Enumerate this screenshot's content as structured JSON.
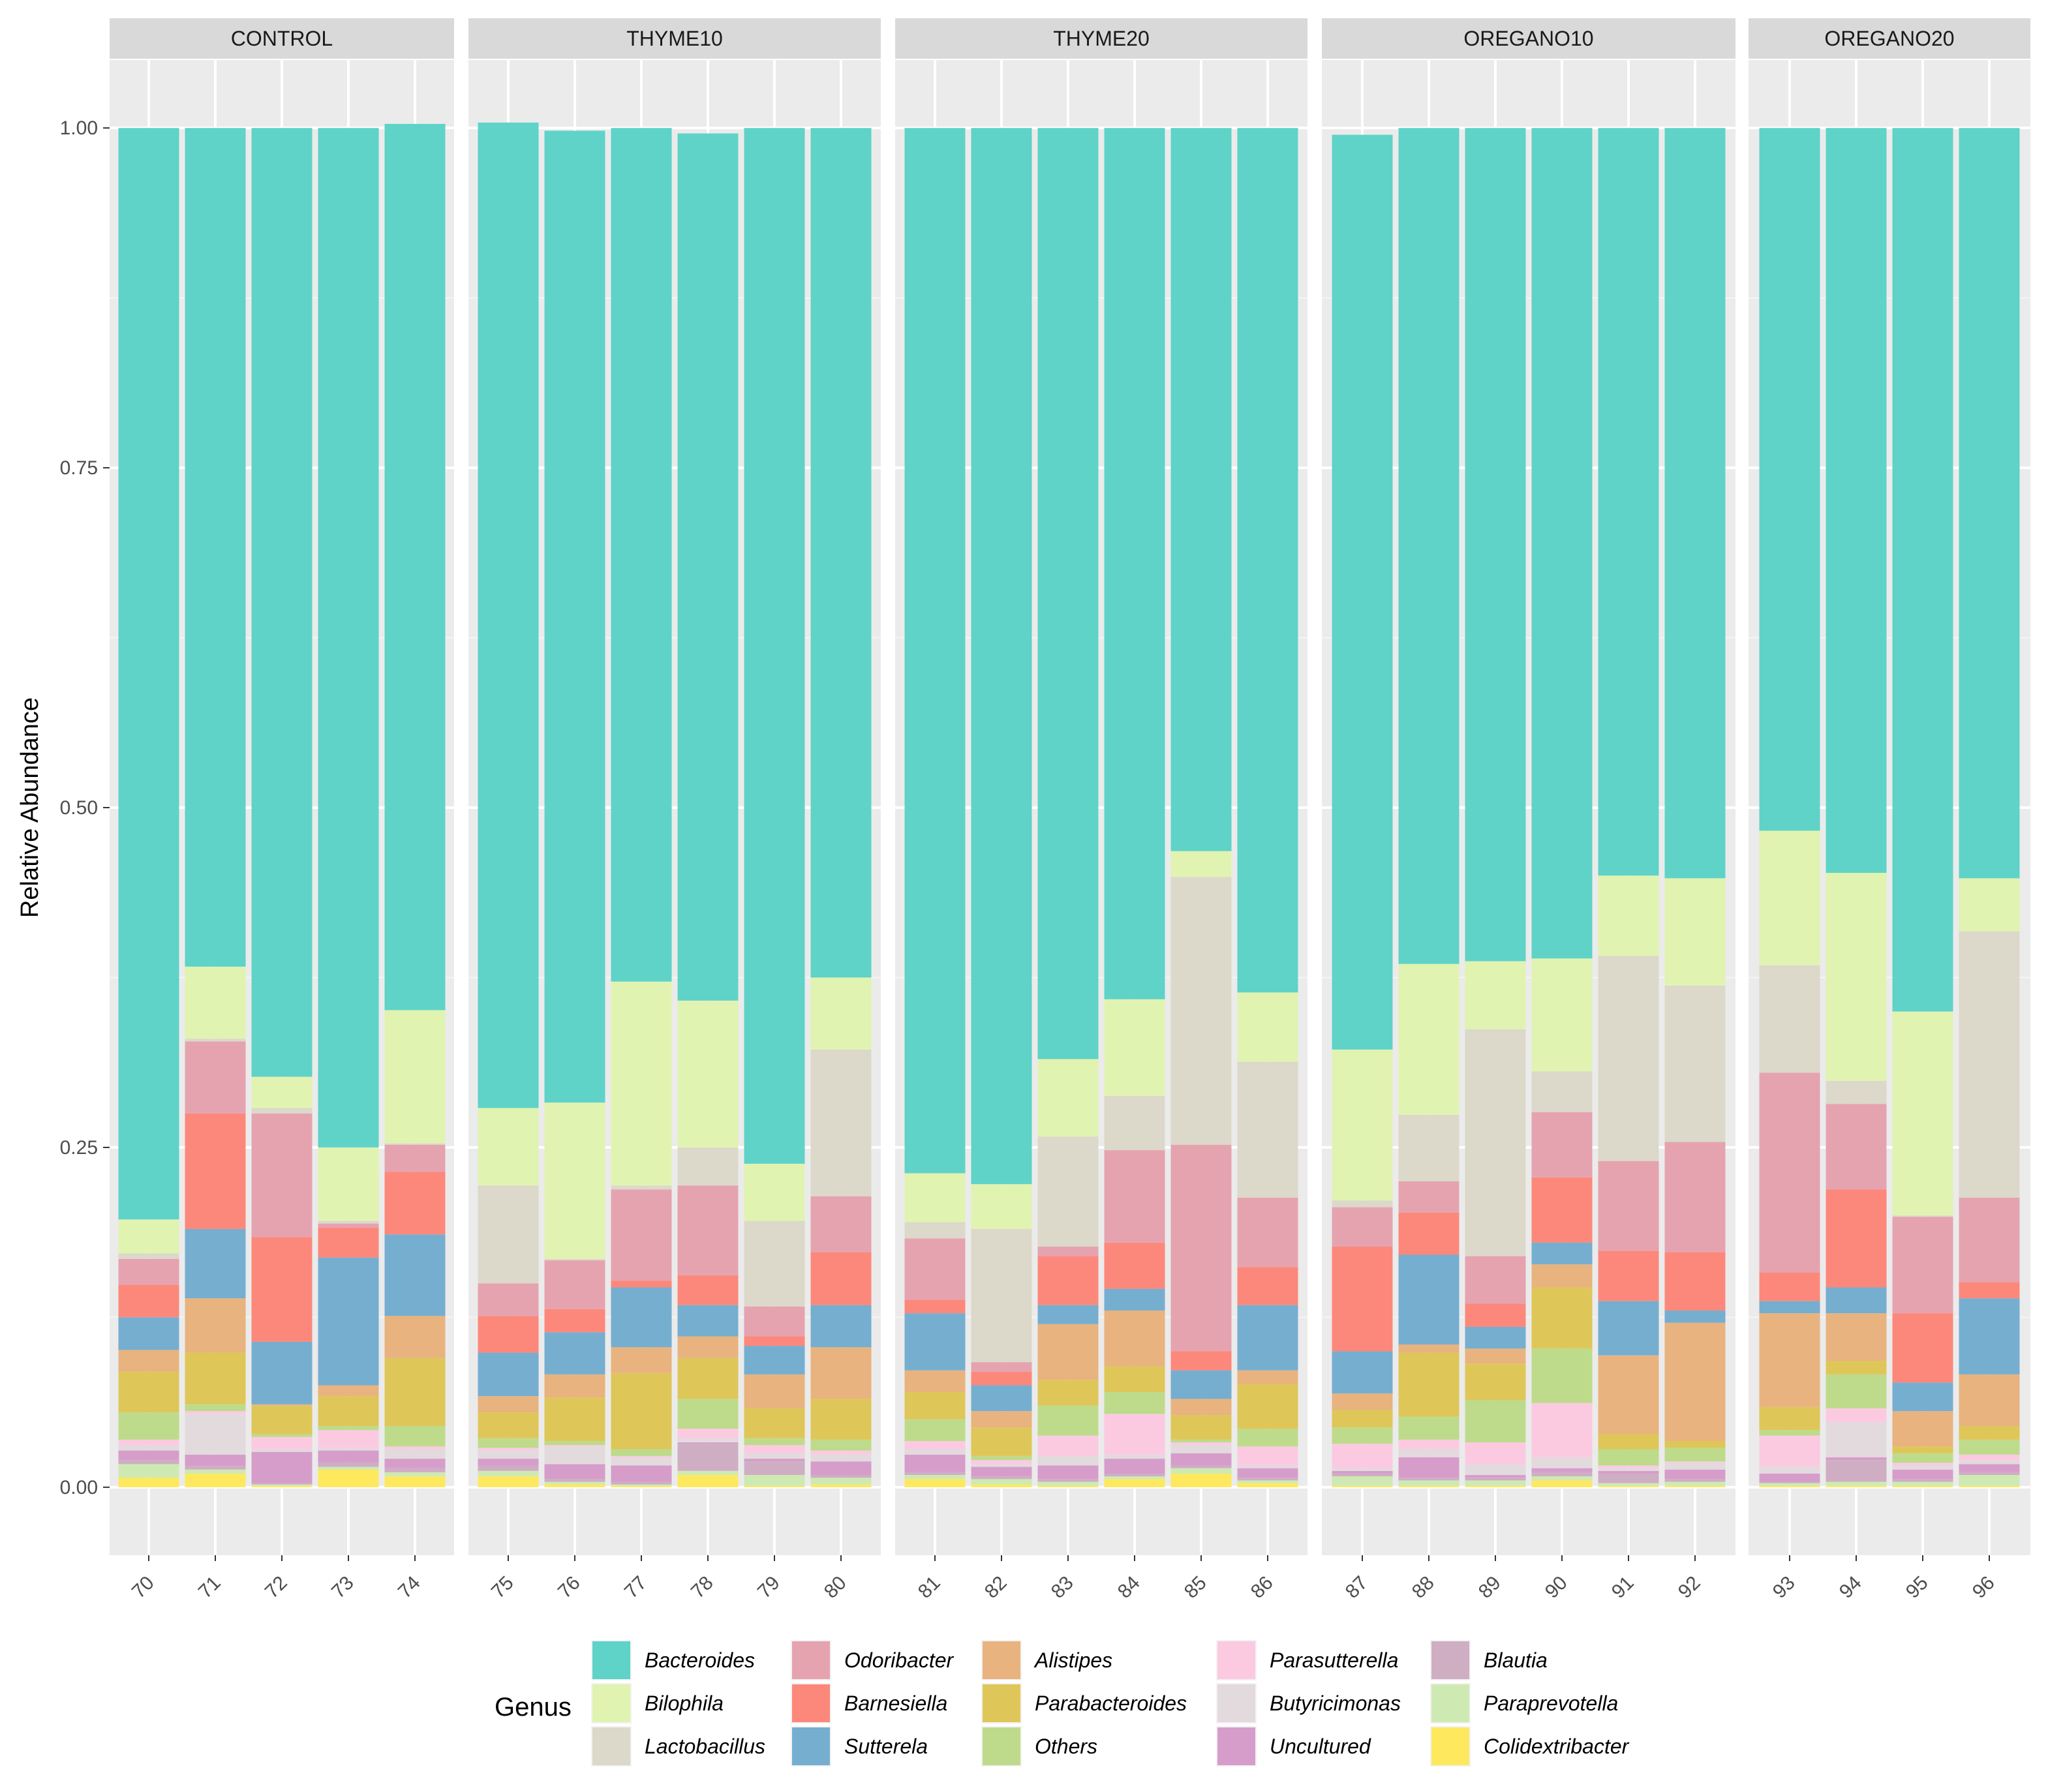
{
  "chart_data": {
    "type": "bar",
    "stacked": true,
    "facets": [
      "CONTROL",
      "THYME10",
      "THYME20",
      "OREGANO10",
      "OREGANO20"
    ],
    "ylabel": "Relative Abundance",
    "xlabel": "",
    "ylim": [
      -0.05,
      1.05
    ],
    "yticks": [
      "0.00",
      "0.25",
      "0.50",
      "0.75",
      "1.00"
    ],
    "grid": true,
    "legend": {
      "title": "Genus",
      "position": "bottom"
    },
    "stack_order": [
      "Colidextribacter",
      "Paraprevotella",
      "Blautia",
      "Uncultured",
      "Butyricimonas",
      "Parasutterella",
      "Others",
      "Parabacteroides",
      "Alistipes",
      "Sutterela",
      "Barnesiella",
      "Odoribacter",
      "Lactobacillus",
      "Bilophila",
      "Bacteroides"
    ],
    "genera": [
      {
        "name": "Bacteroides",
        "color": "#5fd3c8"
      },
      {
        "name": "Bilophila",
        "color": "#e1f3b1"
      },
      {
        "name": "Lactobacillus",
        "color": "#dcd8ca"
      },
      {
        "name": "Odoribacter",
        "color": "#e5a3b0"
      },
      {
        "name": "Barnesiella",
        "color": "#fc887b"
      },
      {
        "name": "Sutterela",
        "color": "#76aed0"
      },
      {
        "name": "Alistipes",
        "color": "#e8b37e"
      },
      {
        "name": "Parabacteroides",
        "color": "#dfc659"
      },
      {
        "name": "Others",
        "color": "#bedb8b"
      },
      {
        "name": "Parasutterella",
        "color": "#fbcae1"
      },
      {
        "name": "Butyricimonas",
        "color": "#e3dade"
      },
      {
        "name": "Uncultured",
        "color": "#d69dcb"
      },
      {
        "name": "Blautia",
        "color": "#cfaec4"
      },
      {
        "name": "Paraprevotella",
        "color": "#ceeab2"
      },
      {
        "name": "Colidextribacter",
        "color": "#fee85e"
      }
    ],
    "samples": [
      {
        "id": "70",
        "facet": "CONTROL",
        "values": {
          "Colidextribacter": 0.007,
          "Paraprevotella": 0.01,
          "Blautia": 0.003,
          "Uncultured": 0.007,
          "Butyricimonas": 0.004,
          "Parasutterella": 0.004,
          "Others": 0.02,
          "Parabacteroides": 0.03,
          "Alistipes": 0.016,
          "Sutterela": 0.024,
          "Barnesiella": 0.024,
          "Odoribacter": 0.019,
          "Lactobacillus": 0.004,
          "Bilophila": 0.025,
          "Bacteroides": 0.803
        }
      },
      {
        "id": "71",
        "facet": "CONTROL",
        "values": {
          "Colidextribacter": 0.01,
          "Paraprevotella": 0.003,
          "Blautia": 0.003,
          "Uncultured": 0.008,
          "Butyricimonas": 0.03,
          "Parasutterella": 0.002,
          "Others": 0.005,
          "Parabacteroides": 0.038,
          "Alistipes": 0.04,
          "Sutterela": 0.051,
          "Barnesiella": 0.085,
          "Odoribacter": 0.053,
          "Lactobacillus": 0.002,
          "Bilophila": 0.053,
          "Bacteroides": 0.617
        }
      },
      {
        "id": "72",
        "facet": "CONTROL",
        "values": {
          "Colidextribacter": 0.001,
          "Paraprevotella": 0.001,
          "Blautia": 0.001,
          "Uncultured": 0.023,
          "Butyricimonas": 0.002,
          "Parasutterella": 0.009,
          "Others": 0.002,
          "Parabacteroides": 0.021,
          "Alistipes": 0.001,
          "Sutterela": 0.046,
          "Barnesiella": 0.077,
          "Odoribacter": 0.091,
          "Lactobacillus": 0.004,
          "Bilophila": 0.023,
          "Bacteroides": 0.698
        }
      },
      {
        "id": "73",
        "facet": "CONTROL",
        "values": {
          "Colidextribacter": 0.013,
          "Paraprevotella": 0.002,
          "Blautia": 0.003,
          "Uncultured": 0.009,
          "Butyricimonas": 0.002,
          "Parasutterella": 0.013,
          "Others": 0.003,
          "Parabacteroides": 0.022,
          "Alistipes": 0.008,
          "Sutterela": 0.094,
          "Barnesiella": 0.022,
          "Odoribacter": 0.003,
          "Lactobacillus": 0.002,
          "Bilophila": 0.054,
          "Bacteroides": 0.75
        }
      },
      {
        "id": "74",
        "facet": "CONTROL",
        "values": {
          "Colidextribacter": 0.008,
          "Paraprevotella": 0.003,
          "Blautia": 0.003,
          "Uncultured": 0.007,
          "Butyricimonas": 0.007,
          "Parasutterella": 0.002,
          "Others": 0.015,
          "Parabacteroides": 0.05,
          "Alistipes": 0.031,
          "Sutterela": 0.06,
          "Barnesiella": 0.046,
          "Odoribacter": 0.02,
          "Lactobacillus": 0.001,
          "Bilophila": 0.098,
          "Bacteroides": 0.652
        }
      },
      {
        "id": "75",
        "facet": "THYME10",
        "values": {
          "Colidextribacter": 0.008,
          "Paraprevotella": 0.004,
          "Blautia": 0.004,
          "Uncultured": 0.005,
          "Butyricimonas": 0.006,
          "Parasutterella": 0.002,
          "Others": 0.007,
          "Parabacteroides": 0.019,
          "Alistipes": 0.012,
          "Sutterela": 0.032,
          "Barnesiella": 0.027,
          "Odoribacter": 0.024,
          "Lactobacillus": 0.072,
          "Bilophila": 0.057,
          "Bacteroides": 0.725
        }
      },
      {
        "id": "76",
        "facet": "THYME10",
        "values": {
          "Colidextribacter": 0.002,
          "Paraprevotella": 0.002,
          "Blautia": 0.002,
          "Uncultured": 0.011,
          "Butyricimonas": 0.013,
          "Parasutterella": 0.001,
          "Others": 0.003,
          "Parabacteroides": 0.032,
          "Alistipes": 0.017,
          "Sutterela": 0.031,
          "Barnesiella": 0.017,
          "Odoribacter": 0.036,
          "Lactobacillus": 0.001,
          "Bilophila": 0.115,
          "Bacteroides": 0.715
        }
      },
      {
        "id": "77",
        "facet": "THYME10",
        "values": {
          "Colidextribacter": 0.001,
          "Paraprevotella": 0.001,
          "Blautia": 0.002,
          "Uncultured": 0.012,
          "Butyricimonas": 0.006,
          "Parasutterella": 0.001,
          "Others": 0.005,
          "Parabacteroides": 0.056,
          "Alistipes": 0.019,
          "Sutterela": 0.044,
          "Barnesiella": 0.005,
          "Odoribacter": 0.067,
          "Lactobacillus": 0.003,
          "Bilophila": 0.15,
          "Bacteroides": 0.628
        }
      },
      {
        "id": "78",
        "facet": "THYME10",
        "values": {
          "Colidextribacter": 0.009,
          "Paraprevotella": 0.003,
          "Blautia": 0.02,
          "Uncultured": 0.001,
          "Butyricimonas": 0.003,
          "Parasutterella": 0.007,
          "Others": 0.022,
          "Parabacteroides": 0.03,
          "Alistipes": 0.016,
          "Sutterela": 0.023,
          "Barnesiella": 0.022,
          "Odoribacter": 0.066,
          "Lactobacillus": 0.028,
          "Bilophila": 0.108,
          "Bacteroides": 0.638
        }
      },
      {
        "id": "79",
        "facet": "THYME10",
        "values": {
          "Colidextribacter": 0.001,
          "Paraprevotella": 0.008,
          "Blautia": 0.01,
          "Uncultured": 0.002,
          "Butyricimonas": 0.004,
          "Parasutterella": 0.006,
          "Others": 0.005,
          "Parabacteroides": 0.022,
          "Alistipes": 0.025,
          "Sutterela": 0.021,
          "Barnesiella": 0.007,
          "Odoribacter": 0.022,
          "Lactobacillus": 0.063,
          "Bilophila": 0.042,
          "Bacteroides": 0.762
        }
      },
      {
        "id": "80",
        "facet": "THYME10",
        "values": {
          "Colidextribacter": 0.002,
          "Paraprevotella": 0.005,
          "Blautia": 0.002,
          "Uncultured": 0.01,
          "Butyricimonas": 0.005,
          "Parasutterella": 0.003,
          "Others": 0.008,
          "Parabacteroides": 0.03,
          "Alistipes": 0.038,
          "Sutterela": 0.031,
          "Barnesiella": 0.039,
          "Odoribacter": 0.041,
          "Lactobacillus": 0.108,
          "Bilophila": 0.053,
          "Bacteroides": 0.625
        }
      },
      {
        "id": "81",
        "facet": "THYME20",
        "values": {
          "Colidextribacter": 0.006,
          "Paraprevotella": 0.003,
          "Blautia": 0.002,
          "Uncultured": 0.013,
          "Butyricimonas": 0.004,
          "Parasutterella": 0.006,
          "Others": 0.016,
          "Parabacteroides": 0.02,
          "Alistipes": 0.016,
          "Sutterela": 0.042,
          "Barnesiella": 0.01,
          "Odoribacter": 0.045,
          "Lactobacillus": 0.012,
          "Bilophila": 0.036,
          "Bacteroides": 0.769
        }
      },
      {
        "id": "82",
        "facet": "THYME20",
        "values": {
          "Colidextribacter": 0.002,
          "Paraprevotella": 0.004,
          "Blautia": 0.002,
          "Uncultured": 0.007,
          "Butyricimonas": 0.002,
          "Parasutterella": 0.003,
          "Others": 0.003,
          "Parabacteroides": 0.021,
          "Alistipes": 0.012,
          "Sutterela": 0.019,
          "Barnesiella": 0.01,
          "Odoribacter": 0.007,
          "Lactobacillus": 0.098,
          "Bilophila": 0.033,
          "Bacteroides": 0.777
        }
      },
      {
        "id": "83",
        "facet": "THYME20",
        "values": {
          "Colidextribacter": 0.001,
          "Paraprevotella": 0.003,
          "Blautia": 0.002,
          "Uncultured": 0.01,
          "Butyricimonas": 0.007,
          "Parasutterella": 0.015,
          "Others": 0.022,
          "Parabacteroides": 0.019,
          "Alistipes": 0.041,
          "Sutterela": 0.014,
          "Barnesiella": 0.036,
          "Odoribacter": 0.007,
          "Lactobacillus": 0.081,
          "Bilophila": 0.057,
          "Bacteroides": 0.685
        }
      },
      {
        "id": "84",
        "facet": "THYME20",
        "values": {
          "Colidextribacter": 0.006,
          "Paraprevotella": 0.002,
          "Blautia": 0.002,
          "Uncultured": 0.011,
          "Butyricimonas": 0.003,
          "Parasutterella": 0.03,
          "Others": 0.016,
          "Parabacteroides": 0.019,
          "Alistipes": 0.041,
          "Sutterela": 0.016,
          "Barnesiella": 0.034,
          "Odoribacter": 0.068,
          "Lactobacillus": 0.04,
          "Bilophila": 0.071,
          "Bacteroides": 0.641
        }
      },
      {
        "id": "85",
        "facet": "THYME20",
        "values": {
          "Colidextribacter": 0.01,
          "Paraprevotella": 0.004,
          "Blautia": 0.002,
          "Uncultured": 0.009,
          "Butyricimonas": 0.006,
          "Parasutterella": 0.002,
          "Others": 0.002,
          "Parabacteroides": 0.018,
          "Alistipes": 0.012,
          "Sutterela": 0.021,
          "Barnesiella": 0.014,
          "Odoribacter": 0.152,
          "Lactobacillus": 0.197,
          "Bilophila": 0.019,
          "Bacteroides": 0.532
        }
      },
      {
        "id": "86",
        "facet": "THYME20",
        "values": {
          "Colidextribacter": 0.003,
          "Paraprevotella": 0.002,
          "Blautia": 0.002,
          "Uncultured": 0.007,
          "Butyricimonas": 0.002,
          "Parasutterella": 0.014,
          "Others": 0.013,
          "Parabacteroides": 0.033,
          "Alistipes": 0.01,
          "Sutterela": 0.048,
          "Barnesiella": 0.028,
          "Odoribacter": 0.051,
          "Lactobacillus": 0.1,
          "Bilophila": 0.051,
          "Bacteroides": 0.636
        }
      },
      {
        "id": "87",
        "facet": "OREGANO10",
        "values": {
          "Colidextribacter": 0.001,
          "Paraprevotella": 0.007,
          "Blautia": 0.002,
          "Uncultured": 0.002,
          "Butyricimonas": 0.002,
          "Parasutterella": 0.018,
          "Others": 0.012,
          "Parabacteroides": 0.013,
          "Alistipes": 0.012,
          "Sutterela": 0.031,
          "Barnesiella": 0.077,
          "Odoribacter": 0.029,
          "Lactobacillus": 0.005,
          "Bilophila": 0.111,
          "Bacteroides": 0.673
        }
      },
      {
        "id": "88",
        "facet": "OREGANO10",
        "values": {
          "Colidextribacter": 0.001,
          "Paraprevotella": 0.004,
          "Blautia": 0.002,
          "Uncultured": 0.015,
          "Butyricimonas": 0.006,
          "Parasutterella": 0.007,
          "Others": 0.017,
          "Parabacteroides": 0.047,
          "Alistipes": 0.006,
          "Sutterela": 0.066,
          "Barnesiella": 0.031,
          "Odoribacter": 0.023,
          "Lactobacillus": 0.049,
          "Bilophila": 0.111,
          "Bacteroides": 0.615
        }
      },
      {
        "id": "89",
        "facet": "OREGANO10",
        "values": {
          "Colidextribacter": 0.001,
          "Paraprevotella": 0.004,
          "Blautia": 0.002,
          "Uncultured": 0.002,
          "Butyricimonas": 0.008,
          "Parasutterella": 0.016,
          "Others": 0.031,
          "Parabacteroides": 0.027,
          "Alistipes": 0.011,
          "Sutterela": 0.016,
          "Barnesiella": 0.017,
          "Odoribacter": 0.035,
          "Lactobacillus": 0.167,
          "Bilophila": 0.05,
          "Bacteroides": 0.613
        }
      },
      {
        "id": "90",
        "facet": "OREGANO10",
        "values": {
          "Colidextribacter": 0.005,
          "Paraprevotella": 0.003,
          "Blautia": 0.003,
          "Uncultured": 0.003,
          "Butyricimonas": 0.008,
          "Parasutterella": 0.04,
          "Others": 0.04,
          "Parabacteroides": 0.045,
          "Alistipes": 0.017,
          "Sutterela": 0.016,
          "Barnesiella": 0.048,
          "Odoribacter": 0.048,
          "Lactobacillus": 0.03,
          "Bilophila": 0.083,
          "Bacteroides": 0.611
        }
      },
      {
        "id": "91",
        "facet": "OREGANO10",
        "values": {
          "Colidextribacter": 0.001,
          "Paraprevotella": 0.002,
          "Blautia": 0.007,
          "Uncultured": 0.002,
          "Butyricimonas": 0.002,
          "Parasutterella": 0.002,
          "Others": 0.012,
          "Parabacteroides": 0.011,
          "Alistipes": 0.058,
          "Sutterela": 0.04,
          "Barnesiella": 0.037,
          "Odoribacter": 0.066,
          "Lactobacillus": 0.151,
          "Bilophila": 0.059,
          "Bacteroides": 0.55
        }
      },
      {
        "id": "92",
        "facet": "OREGANO10",
        "values": {
          "Colidextribacter": 0.001,
          "Paraprevotella": 0.003,
          "Blautia": 0.002,
          "Uncultured": 0.007,
          "Butyricimonas": 0.005,
          "Parasutterella": 0.001,
          "Others": 0.01,
          "Parabacteroides": 0.005,
          "Alistipes": 0.087,
          "Sutterela": 0.009,
          "Barnesiella": 0.043,
          "Odoribacter": 0.081,
          "Lactobacillus": 0.115,
          "Bilophila": 0.079,
          "Bacteroides": 0.552
        }
      },
      {
        "id": "93",
        "facet": "OREGANO20",
        "values": {
          "Colidextribacter": 0.001,
          "Paraprevotella": 0.002,
          "Blautia": 0.001,
          "Uncultured": 0.006,
          "Butyricimonas": 0.005,
          "Parasutterella": 0.023,
          "Others": 0.004,
          "Parabacteroides": 0.017,
          "Alistipes": 0.069,
          "Sutterela": 0.009,
          "Barnesiella": 0.021,
          "Odoribacter": 0.147,
          "Lactobacillus": 0.079,
          "Bilophila": 0.099,
          "Bacteroides": 0.517
        }
      },
      {
        "id": "94",
        "facet": "OREGANO20",
        "values": {
          "Colidextribacter": 0.001,
          "Paraprevotella": 0.003,
          "Blautia": 0.016,
          "Uncultured": 0.002,
          "Butyricimonas": 0.026,
          "Parasutterella": 0.01,
          "Others": 0.025,
          "Parabacteroides": 0.01,
          "Alistipes": 0.035,
          "Sutterela": 0.019,
          "Barnesiella": 0.072,
          "Odoribacter": 0.063,
          "Lactobacillus": 0.017,
          "Bilophila": 0.153,
          "Bacteroides": 0.548
        }
      },
      {
        "id": "95",
        "facet": "OREGANO20",
        "values": {
          "Colidextribacter": 0.001,
          "Paraprevotella": 0.003,
          "Blautia": 0.002,
          "Uncultured": 0.007,
          "Butyricimonas": 0.003,
          "Parasutterella": 0.002,
          "Others": 0.007,
          "Parabacteroides": 0.005,
          "Alistipes": 0.026,
          "Sutterela": 0.021,
          "Barnesiella": 0.051,
          "Odoribacter": 0.071,
          "Lactobacillus": 0.001,
          "Bilophila": 0.15,
          "Bacteroides": 0.65
        }
      },
      {
        "id": "96",
        "facet": "OREGANO20",
        "values": {
          "Colidextribacter": 0.001,
          "Paraprevotella": 0.008,
          "Blautia": 0.002,
          "Uncultured": 0.006,
          "Butyricimonas": 0.003,
          "Parasutterella": 0.004,
          "Others": 0.011,
          "Parabacteroides": 0.01,
          "Alistipes": 0.038,
          "Sutterela": 0.056,
          "Barnesiella": 0.012,
          "Odoribacter": 0.062,
          "Lactobacillus": 0.196,
          "Bilophila": 0.039,
          "Bacteroides": 0.552
        }
      }
    ]
  }
}
